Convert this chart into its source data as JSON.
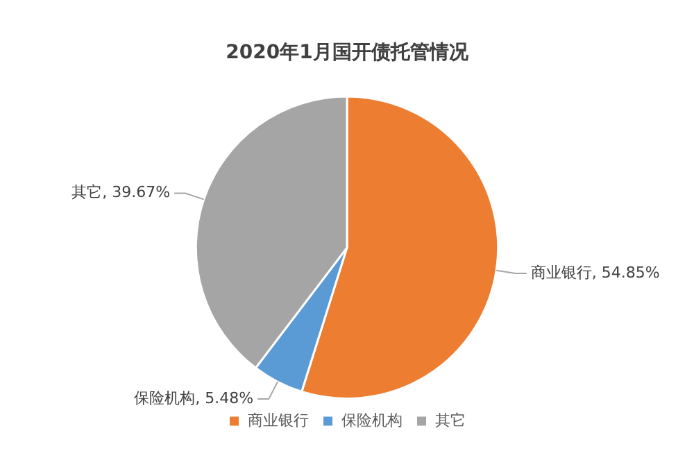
{
  "chart_data": {
    "type": "pie",
    "title": "2020年1月国开债托管情况",
    "categories": [
      "商业银行",
      "保险机构",
      "其它"
    ],
    "values": [
      54.85,
      5.48,
      39.67
    ],
    "colors": [
      "#ed7d31",
      "#5b9bd5",
      "#a5a5a5"
    ],
    "value_labels": [
      "商业银行, 54.85%",
      "保险机构, 5.48%",
      "其它, 39.67%"
    ],
    "legend": "bottom"
  }
}
